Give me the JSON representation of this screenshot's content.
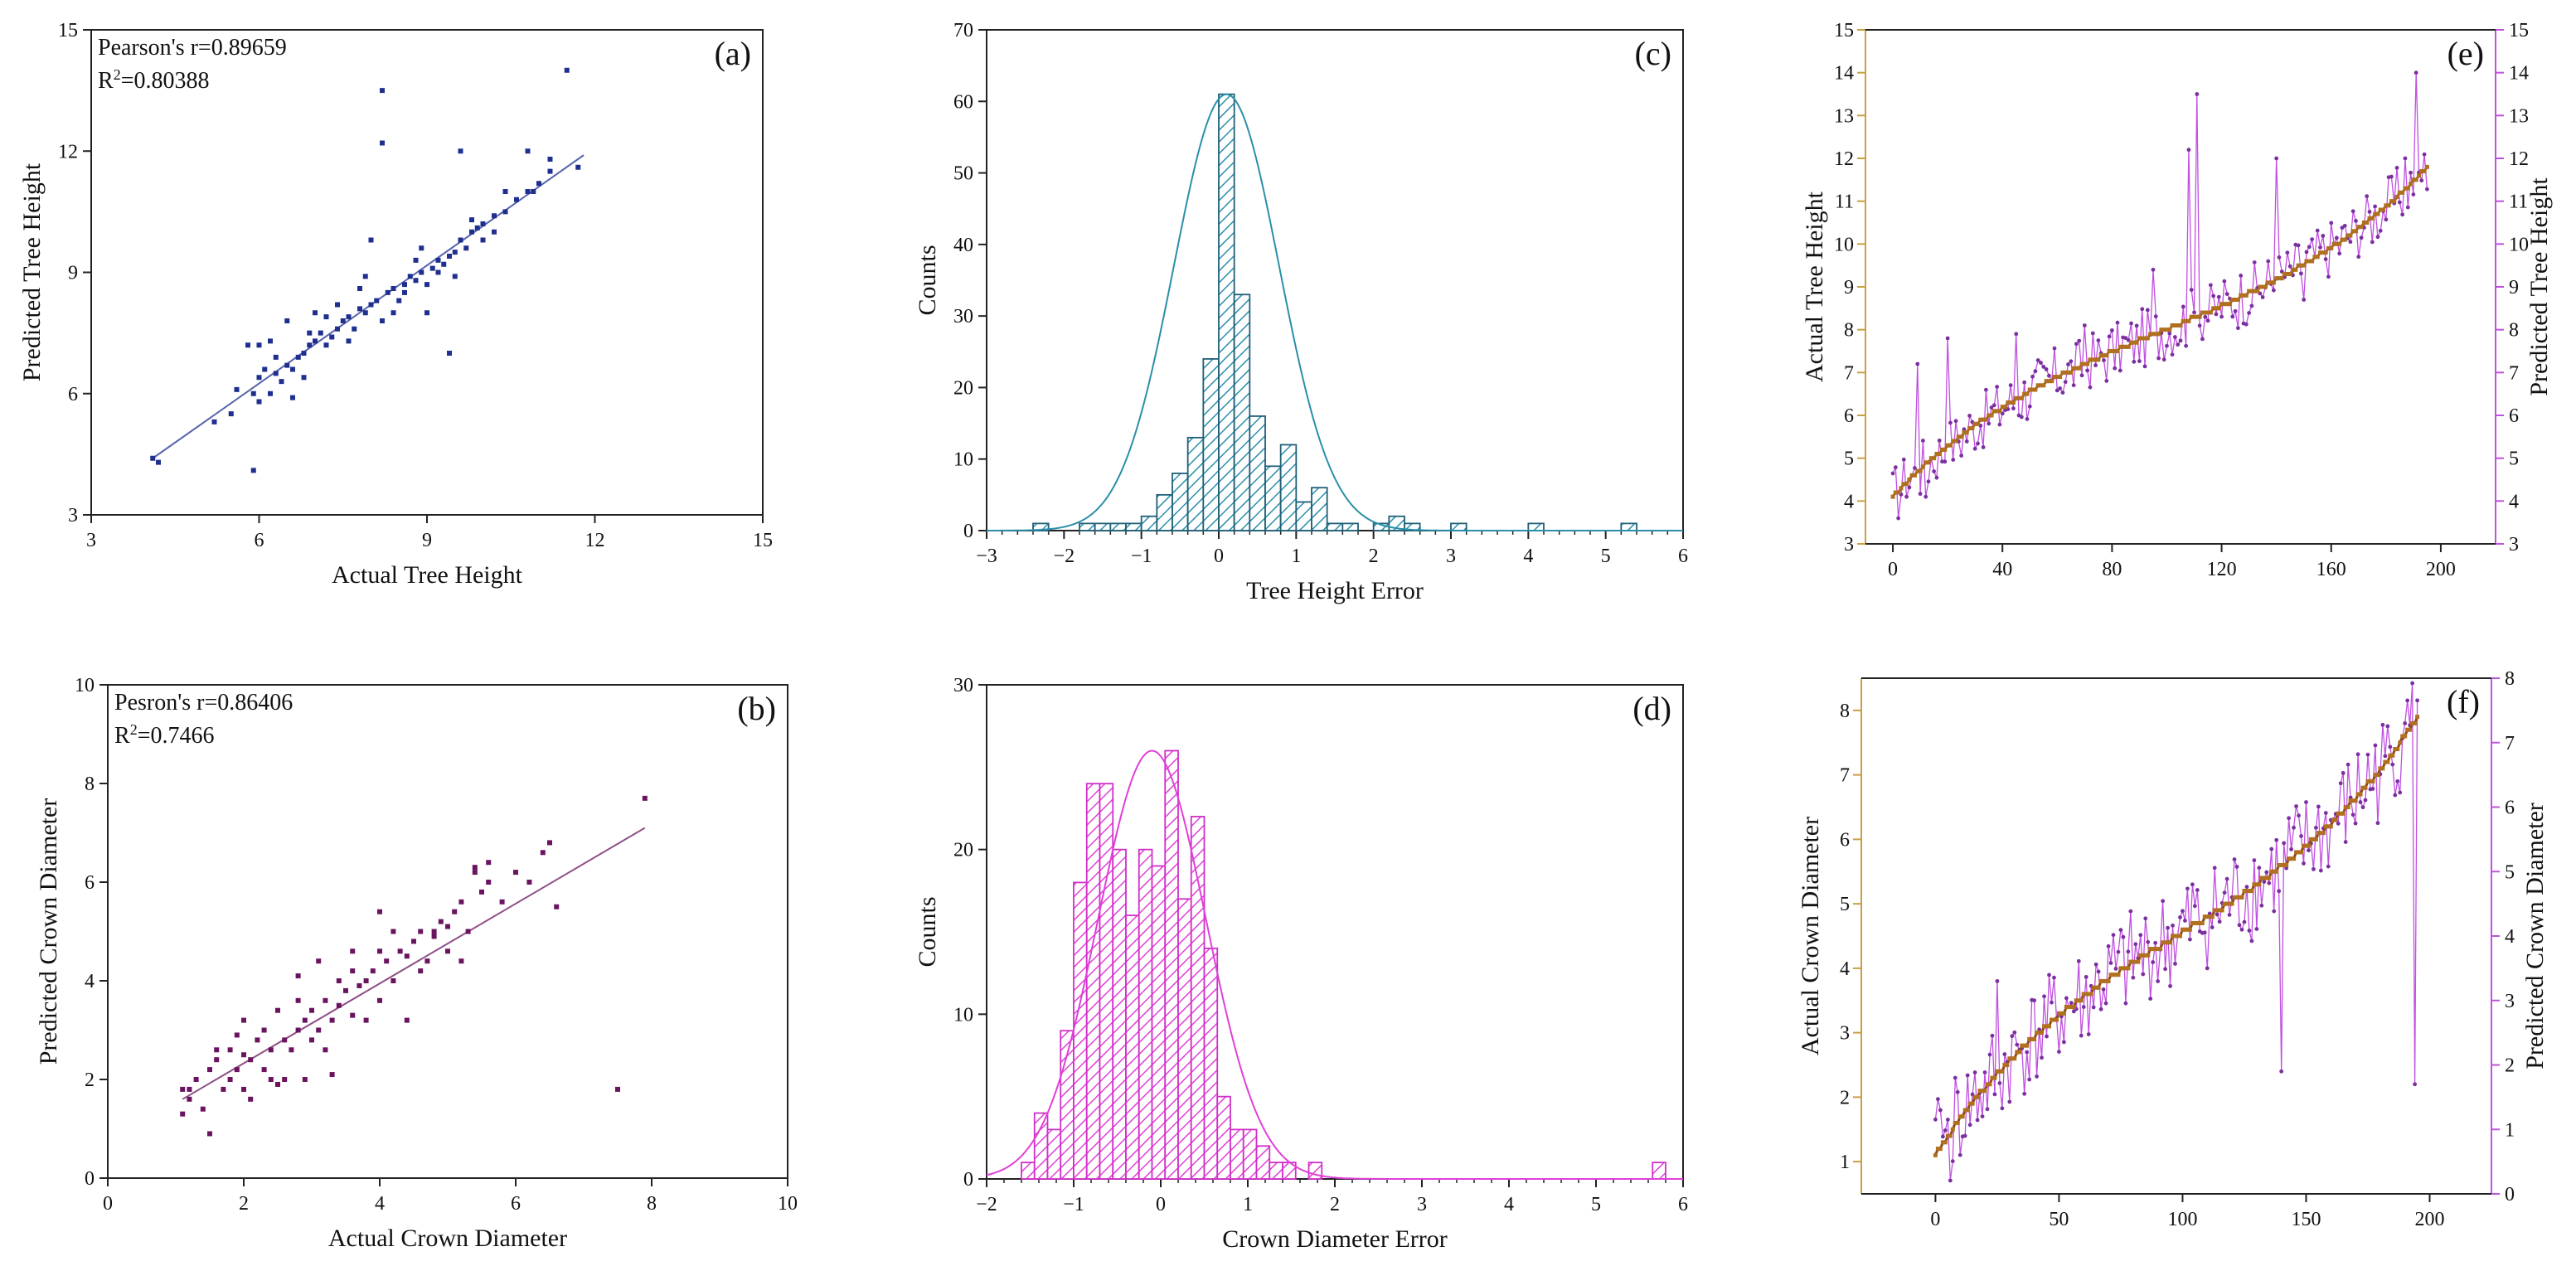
{
  "chart_data": [
    {
      "id": "a",
      "type": "scatter",
      "letter": "(a)",
      "xlabel": "Actual Tree Height",
      "ylabel": "Predicted Tree Height",
      "xlim": [
        3,
        15
      ],
      "ylim": [
        3,
        15
      ],
      "xticks": [
        3,
        6,
        9,
        12,
        15
      ],
      "yticks": [
        3,
        6,
        9,
        12,
        15
      ],
      "annotations": [
        "Pearson's r=0.89659",
        "R²=0.80388"
      ],
      "color": "#1f2f8f",
      "fit_line": {
        "x": [
          4.1,
          11.8
        ],
        "y": [
          4.4,
          11.9
        ]
      },
      "series": [
        {
          "name": "",
          "x": [
            4.1,
            4.2,
            5.2,
            5.5,
            5.6,
            5.8,
            5.9,
            5.9,
            6.0,
            6.0,
            6.1,
            6.2,
            6.2,
            6.3,
            6.4,
            6.5,
            6.5,
            6.6,
            6.7,
            6.8,
            6.9,
            7.0,
            7.1,
            7.2,
            7.3,
            7.4,
            7.5,
            7.6,
            7.7,
            7.8,
            7.9,
            8.0,
            8.1,
            8.2,
            8.3,
            8.4,
            8.5,
            8.6,
            8.7,
            8.8,
            8.9,
            9.0,
            9.1,
            9.2,
            9.3,
            9.4,
            9.5,
            9.6,
            9.7,
            9.8,
            9.9,
            10.0,
            10.2,
            10.4,
            10.6,
            10.8,
            11.0,
            11.2,
            11.5,
            11.7,
            6.0,
            6.6,
            7.0,
            7.6,
            8.0,
            8.2,
            8.6,
            9.0,
            9.4,
            9.6,
            10.0,
            10.4,
            10.8,
            11.2,
            6.3,
            6.9,
            7.4,
            7.9,
            8.4,
            8.8,
            9.2,
            9.8,
            10.2,
            10.9,
            6.8,
            7.2,
            7.8,
            8.2,
            8.9,
            9.5
          ],
          "y": [
            4.4,
            4.3,
            5.3,
            5.5,
            6.1,
            7.2,
            6.0,
            4.1,
            5.8,
            6.4,
            6.6,
            6.0,
            7.3,
            6.5,
            6.3,
            6.7,
            7.8,
            6.6,
            6.9,
            7.0,
            7.2,
            7.3,
            7.5,
            7.2,
            7.4,
            7.6,
            7.8,
            7.9,
            7.6,
            8.1,
            8.0,
            8.2,
            8.3,
            12.2,
            8.5,
            8.6,
            8.3,
            8.7,
            8.9,
            8.8,
            9.0,
            8.7,
            9.1,
            9.3,
            9.2,
            9.4,
            9.5,
            9.8,
            9.6,
            10.0,
            10.1,
            10.2,
            10.4,
            10.5,
            10.8,
            11.0,
            11.2,
            11.5,
            14.0,
            11.6,
            7.2,
            5.9,
            8.0,
            7.3,
            9.8,
            13.5,
            8.5,
            8.0,
            7.0,
            12.0,
            9.8,
            11.0,
            12.0,
            11.8,
            6.9,
            7.5,
            8.2,
            8.9,
            8.0,
            9.3,
            9.0,
            10.3,
            10.0,
            11.0,
            6.4,
            7.9,
            8.6,
            7.8,
            9.6,
            8.9
          ]
        }
      ]
    },
    {
      "id": "b",
      "type": "scatter",
      "letter": "(b)",
      "xlabel": "Actual Crown Diameter",
      "ylabel": "Predicted Crown Diameter",
      "xlim": [
        0,
        10
      ],
      "ylim": [
        0,
        10
      ],
      "xticks": [
        0,
        2,
        4,
        6,
        8,
        10
      ],
      "yticks": [
        0,
        2,
        4,
        6,
        8,
        10
      ],
      "annotations": [
        "Pesron's r=0.86406",
        "R²=0.7466"
      ],
      "color": "#6a1460",
      "fit_line": {
        "x": [
          1.1,
          7.9
        ],
        "y": [
          1.6,
          7.1
        ]
      },
      "series": [
        {
          "name": "",
          "x": [
            1.1,
            1.1,
            1.2,
            1.3,
            1.4,
            1.5,
            1.5,
            1.6,
            1.7,
            1.8,
            1.8,
            1.9,
            2.0,
            2.0,
            2.1,
            2.1,
            2.2,
            2.3,
            2.3,
            2.4,
            2.5,
            2.5,
            2.6,
            2.7,
            2.8,
            2.8,
            2.9,
            2.9,
            3.0,
            3.1,
            3.1,
            3.2,
            3.3,
            3.3,
            3.4,
            3.5,
            3.6,
            3.6,
            3.7,
            3.8,
            3.9,
            4.0,
            4.0,
            4.1,
            4.2,
            4.3,
            4.4,
            4.5,
            4.6,
            4.7,
            4.8,
            4.9,
            5.0,
            5.1,
            5.2,
            5.3,
            5.4,
            5.5,
            5.6,
            5.8,
            6.0,
            6.2,
            6.4,
            6.5,
            6.6,
            7.5,
            7.9,
            1.2,
            1.6,
            2.0,
            2.4,
            2.8,
            3.2,
            3.6,
            4.0,
            4.4,
            4.8,
            5.2,
            5.6,
            1.9,
            2.6,
            3.0,
            3.4,
            3.8,
            4.2,
            4.6,
            5.0,
            5.4
          ],
          "y": [
            1.3,
            1.8,
            1.6,
            2.0,
            1.4,
            0.9,
            2.2,
            2.4,
            1.8,
            2.0,
            2.6,
            2.2,
            2.5,
            3.2,
            2.4,
            1.6,
            2.8,
            2.2,
            3.0,
            2.6,
            1.9,
            3.4,
            2.8,
            2.6,
            3.0,
            4.1,
            3.2,
            2.0,
            3.4,
            3.0,
            4.4,
            3.6,
            3.2,
            2.1,
            3.5,
            3.8,
            3.3,
            4.6,
            3.9,
            4.0,
            4.2,
            3.6,
            5.4,
            4.4,
            4.0,
            4.6,
            4.5,
            4.8,
            5.0,
            4.4,
            4.9,
            5.2,
            5.1,
            5.4,
            5.6,
            5.0,
            6.3,
            5.8,
            6.0,
            5.6,
            6.2,
            6.0,
            6.6,
            6.8,
            5.5,
            1.8,
            7.7,
            1.8,
            2.6,
            1.8,
            2.0,
            3.6,
            2.6,
            4.2,
            4.6,
            3.2,
            5.0,
            4.4,
            6.4,
            2.9,
            2.0,
            2.8,
            4.0,
            3.2,
            5.0,
            4.2,
            4.6,
            6.2
          ]
        }
      ]
    },
    {
      "id": "c",
      "type": "histogram",
      "letter": "(c)",
      "xlabel": "Tree Height Error",
      "ylabel": "Counts",
      "xlim": [
        -3,
        6
      ],
      "ylim": [
        0,
        70
      ],
      "xticks": [
        -3,
        -2,
        -1,
        0,
        1,
        2,
        3,
        4,
        5,
        6
      ],
      "yticks": [
        0,
        10,
        20,
        30,
        40,
        50,
        60,
        70
      ],
      "color": "#2a8fa8",
      "bin_width": 0.2,
      "bins_start": [
        -2.4,
        -1.8,
        -1.6,
        -1.4,
        -1.2,
        -1.0,
        -0.8,
        -0.6,
        -0.4,
        -0.2,
        0.0,
        0.2,
        0.4,
        0.6,
        0.8,
        1.0,
        1.2,
        1.4,
        1.6,
        2.0,
        2.2,
        2.4,
        3.0,
        4.0,
        5.2
      ],
      "counts": [
        1,
        1,
        1,
        1,
        1,
        2,
        5,
        8,
        13,
        24,
        61,
        33,
        16,
        9,
        12,
        4,
        6,
        1,
        1,
        1,
        2,
        1,
        1,
        1,
        1
      ],
      "normal_curve": {
        "mean": 0.1,
        "sd": 0.68,
        "peak": 61
      }
    },
    {
      "id": "d",
      "type": "histogram",
      "letter": "(d)",
      "xlabel": "Crown Diameter Error",
      "ylabel": "Counts",
      "xlim": [
        -2,
        6
      ],
      "ylim": [
        0,
        30
      ],
      "xticks": [
        -2,
        -1,
        0,
        1,
        2,
        3,
        4,
        5,
        6
      ],
      "yticks": [
        0,
        10,
        20,
        30
      ],
      "color": "#e040d8",
      "bin_width": 0.15,
      "bins_start": [
        -1.6,
        -1.45,
        -1.3,
        -1.15,
        -1.0,
        -0.85,
        -0.7,
        -0.55,
        -0.4,
        -0.25,
        -0.1,
        0.05,
        0.2,
        0.35,
        0.5,
        0.65,
        0.8,
        0.95,
        1.1,
        1.25,
        1.4,
        1.7,
        5.65
      ],
      "counts": [
        1,
        4,
        3,
        9,
        18,
        24,
        24,
        20,
        16,
        20,
        19,
        26,
        17,
        22,
        14,
        5,
        3,
        3,
        2,
        1,
        1,
        1,
        1
      ],
      "normal_curve": {
        "mean": -0.1,
        "sd": 0.62,
        "peak": 26
      }
    },
    {
      "id": "e",
      "type": "line",
      "letter": "(e)",
      "xlabel": "",
      "ylabel": "Actual Tree Height",
      "y2label": "Predicted Tree Height",
      "xlim": [
        -10,
        220
      ],
      "ylim": [
        3,
        15
      ],
      "xticks": [
        0,
        40,
        80,
        120,
        160,
        200
      ],
      "yticks": [
        3,
        4,
        5,
        6,
        7,
        8,
        9,
        10,
        11,
        12,
        13,
        14,
        15
      ],
      "actual_color": "#8b4a10",
      "predicted_color": "#c050e0",
      "axis_color": "#c8a040",
      "axis2_color": "#c050e0",
      "actual_range": [
        4.1,
        11.8
      ],
      "predicted_spikes": [
        [
          5,
          4.1
        ],
        [
          9,
          7.2
        ],
        [
          12,
          4.1
        ],
        [
          20,
          7.8
        ],
        [
          45,
          7.9
        ],
        [
          70,
          8.1
        ],
        [
          95,
          9.4
        ],
        [
          108,
          12.2
        ],
        [
          111,
          13.5
        ],
        [
          140,
          12.0
        ],
        [
          150,
          8.7
        ],
        [
          187,
          12.0
        ],
        [
          191,
          14.0
        ]
      ]
    },
    {
      "id": "f",
      "type": "line",
      "letter": "(f)",
      "xlabel": "",
      "ylabel": "Actual Crown Diameter",
      "y2label": "Predicted Crown Diameter",
      "xlim": [
        -30,
        225
      ],
      "ylim": [
        0.5,
        8.5
      ],
      "xticks": [
        0,
        50,
        100,
        150,
        200
      ],
      "yticks": [
        1,
        2,
        3,
        4,
        5,
        6,
        7,
        8
      ],
      "y2lim": [
        0,
        8
      ],
      "y2ticks": [
        0,
        1,
        2,
        3,
        4,
        5,
        6,
        7,
        8
      ],
      "actual_color": "#8b4a10",
      "predicted_color": "#c050e0",
      "axis_color": "#c8a040",
      "axis2_color": "#c050e0",
      "actual_range": [
        1.1,
        7.9
      ],
      "predicted_spikes": [
        [
          2,
          1.8
        ],
        [
          8,
          2.3
        ],
        [
          12,
          1.4
        ],
        [
          25,
          3.8
        ],
        [
          60,
          3.4
        ],
        [
          104,
          5.3
        ],
        [
          120,
          5.1
        ],
        [
          140,
          2.4
        ],
        [
          160,
          6.3
        ],
        [
          190,
          7.8
        ],
        [
          194,
          2.2
        ]
      ]
    }
  ]
}
